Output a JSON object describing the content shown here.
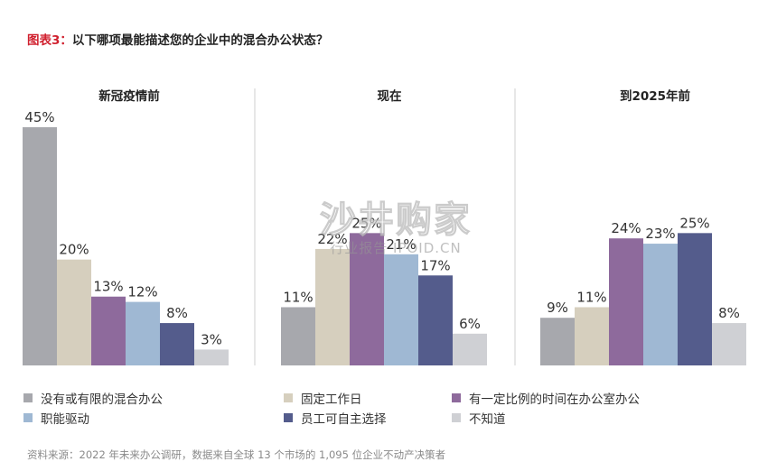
{
  "title": {
    "prefix": "图表3：",
    "text": "以下哪项最能描述您的企业中的混合办公状态？"
  },
  "chart_data": {
    "type": "bar",
    "panels": [
      {
        "title": "新冠疫情前",
        "values": [
          45,
          20,
          13,
          12,
          8,
          3
        ],
        "labels": [
          "45%",
          "20%",
          "13%",
          "12%",
          "8%",
          "3%"
        ]
      },
      {
        "title": "现在",
        "values": [
          11,
          22,
          25,
          21,
          17,
          6
        ],
        "labels": [
          "11%",
          "22%",
          "25%",
          "21%",
          "17%",
          "6%"
        ]
      },
      {
        "title": "到2025年前",
        "values": [
          9,
          11,
          24,
          23,
          25,
          8
        ],
        "labels": [
          "9%",
          "11%",
          "24%",
          "23%",
          "25%",
          "8%"
        ]
      }
    ],
    "series": [
      {
        "name": "没有或有限的混合办公",
        "color": "#a7a8ad"
      },
      {
        "name": "固定工作日",
        "color": "#d6cfbe"
      },
      {
        "name": "有一定比例的时间在办公室办公",
        "color": "#8e6a9c"
      },
      {
        "name": "职能驱动",
        "color": "#9fb8d3"
      },
      {
        "name": "员工可自主选择",
        "color": "#545c8c"
      },
      {
        "name": "不知道",
        "color": "#cfd0d4"
      }
    ],
    "ylim": [
      0,
      45
    ],
    "grid": false,
    "legend_position": "bottom"
  },
  "watermark": {
    "main": "沙井购家",
    "sub": "行业报告 IPOID.CN"
  },
  "source": "资料来源：2022 年未来办公调研，数据来自全球 13 个市场的 1,095 位企业不动产决策者"
}
